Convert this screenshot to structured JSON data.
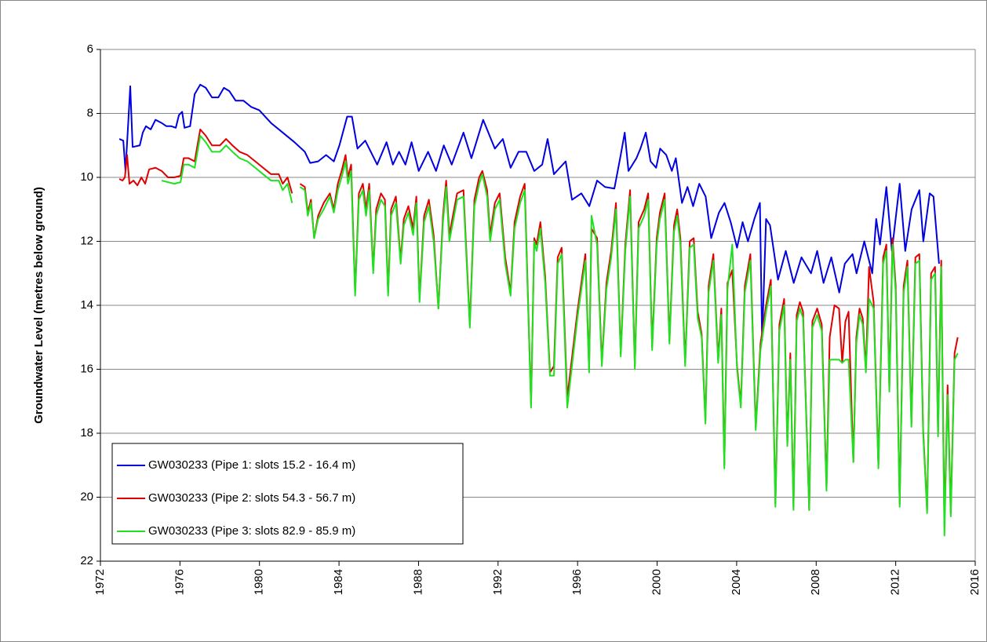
{
  "chart_data": {
    "type": "line",
    "y_label": "Groundwater Level (metres below ground)",
    "xlim": [
      1972,
      2016
    ],
    "xticks": [
      1972,
      1976,
      1980,
      1984,
      1988,
      1992,
      1996,
      2000,
      2004,
      2008,
      2012,
      2016
    ],
    "ylim": [
      6,
      22
    ],
    "yticks": [
      6,
      8,
      10,
      12,
      14,
      16,
      18,
      20,
      22
    ],
    "y_reversed": true,
    "grid": true,
    "legend": "lower-left",
    "series": [
      {
        "name": "GW030233 (Pipe 1: slots 15.2 - 16.4 m)",
        "color": "#0000e0",
        "x": [
          1972.95,
          1973.15,
          1973.26,
          1973.38,
          1973.5,
          1973.62,
          1973.98,
          1974.13,
          1974.29,
          1974.53,
          1974.77,
          1975.08,
          1975.32,
          1975.56,
          1975.79,
          1975.95,
          1976.11,
          1976.23,
          1976.51,
          1976.74,
          1977.02,
          1977.3,
          1977.61,
          1977.93,
          1978.21,
          1978.48,
          1978.8,
          1979.19,
          1979.59,
          1979.99,
          1980.58,
          1981.17,
          1981.76,
          1982.28,
          1982.55,
          1982.95,
          1983.35,
          1983.74,
          1984.02,
          1984.41,
          1984.65,
          1984.93,
          1985.32,
          1985.92,
          1986.39,
          1986.71,
          1987.02,
          1987.34,
          1987.65,
          1988.01,
          1988.48,
          1988.88,
          1989.27,
          1989.67,
          1990.26,
          1990.66,
          1991.25,
          1991.84,
          1992.24,
          1992.63,
          1993.03,
          1993.42,
          1993.82,
          1994.22,
          1994.49,
          1994.81,
          1995.4,
          1995.72,
          1996.19,
          1996.59,
          1996.98,
          1997.38,
          1997.85,
          1998.17,
          1998.37,
          1998.56,
          1998.96,
          1999.16,
          1999.43,
          1999.67,
          1999.95,
          2000.15,
          2000.46,
          2000.74,
          2000.94,
          2001.25,
          2001.53,
          2001.81,
          2002.12,
          2002.44,
          2002.72,
          2003.11,
          2003.39,
          2003.7,
          2004.02,
          2004.3,
          2004.57,
          2004.89,
          2005.17,
          2005.28,
          2005.48,
          2005.68,
          2006.08,
          2006.47,
          2006.87,
          2007.26,
          2007.74,
          2008.05,
          2008.37,
          2008.76,
          2009.16,
          2009.44,
          2009.83,
          2010.03,
          2010.42,
          2010.82,
          2011.02,
          2011.21,
          2011.53,
          2011.81,
          2012.2,
          2012.48,
          2012.8,
          2013.19,
          2013.39,
          2013.71,
          2013.9,
          2014.18
        ],
        "values": [
          8.8,
          8.85,
          9.8,
          8.5,
          7.15,
          9.05,
          9.0,
          8.6,
          8.4,
          8.5,
          8.2,
          8.3,
          8.4,
          8.4,
          8.45,
          8.05,
          7.95,
          8.45,
          8.4,
          7.4,
          7.1,
          7.2,
          7.5,
          7.5,
          7.2,
          7.3,
          7.6,
          7.6,
          7.8,
          7.9,
          8.3,
          8.6,
          8.9,
          9.2,
          9.55,
          9.5,
          9.3,
          9.5,
          9.0,
          8.1,
          8.1,
          9.1,
          8.85,
          9.6,
          8.9,
          9.6,
          9.2,
          9.6,
          8.9,
          9.8,
          9.2,
          9.8,
          9.0,
          9.6,
          8.6,
          9.4,
          8.2,
          9.1,
          8.8,
          9.7,
          9.2,
          9.2,
          9.8,
          9.6,
          8.8,
          9.9,
          9.5,
          10.7,
          10.5,
          10.9,
          10.1,
          10.3,
          10.35,
          9.3,
          8.6,
          9.8,
          9.4,
          9.1,
          8.6,
          9.5,
          9.7,
          9.1,
          9.3,
          9.8,
          9.4,
          10.8,
          10.3,
          10.9,
          10.2,
          10.6,
          11.9,
          11.1,
          10.8,
          11.4,
          12.2,
          11.4,
          12.0,
          11.3,
          10.8,
          15.1,
          11.3,
          11.5,
          13.2,
          12.3,
          13.3,
          12.5,
          13.0,
          12.3,
          13.3,
          12.5,
          13.6,
          12.7,
          12.4,
          13.0,
          12.0,
          13.0,
          11.3,
          12.1,
          10.3,
          12.3,
          10.2,
          12.3,
          11.0,
          10.4,
          12.0,
          10.5,
          10.6,
          12.7
        ]
      },
      {
        "name": "GW030233 (Pipe 2: slots 54.3 - 56.7 m)",
        "color": "#e00000",
        "x": [
          1972.95,
          1973.11,
          1973.23,
          1973.34,
          1973.46,
          1973.66,
          1973.86,
          1974.06,
          1974.25,
          1974.45,
          1974.77,
          1975.08,
          1975.4,
          1975.72,
          1976.03,
          1976.19,
          1976.43,
          1976.74,
          1977.02,
          1977.3,
          1977.61,
          1978.01,
          1978.32,
          1978.64,
          1979.0,
          1979.39,
          1979.79,
          1980.18,
          1980.58,
          1980.97,
          1981.17,
          1981.41,
          1981.64,
          1981.84,
          1982.04,
          1982.28,
          1982.43,
          1982.59,
          1982.75,
          1982.95,
          1983.23,
          1983.54,
          1983.74,
          1983.94,
          1984.13,
          1984.33,
          1984.45,
          1984.61,
          1984.81,
          1985.0,
          1985.2,
          1985.36,
          1985.52,
          1985.72,
          1985.87,
          1986.11,
          1986.31,
          1986.47,
          1986.62,
          1986.86,
          1987.1,
          1987.26,
          1987.49,
          1987.73,
          1987.89,
          1988.05,
          1988.28,
          1988.52,
          1988.76,
          1989.0,
          1989.23,
          1989.39,
          1989.55,
          1989.79,
          1989.94,
          1990.26,
          1990.58,
          1990.81,
          1991.05,
          1991.21,
          1991.45,
          1991.6,
          1991.84,
          1992.08,
          1992.36,
          1992.63,
          1992.83,
          1993.11,
          1993.34,
          1993.66,
          1993.82,
          1993.94,
          1994.13,
          1994.37,
          1994.61,
          1994.81,
          1995.0,
          1995.2,
          1995.48,
          1995.99,
          1996.39,
          1996.58,
          1996.7,
          1996.98,
          1997.22,
          1997.45,
          1997.69,
          1997.93,
          1998.17,
          1998.4,
          1998.64,
          1998.88,
          1999.07,
          1999.35,
          1999.55,
          1999.75,
          1999.98,
          2000.14,
          2000.38,
          2000.62,
          2000.85,
          2001.01,
          2001.17,
          2001.41,
          2001.64,
          2001.84,
          2002.04,
          2002.24,
          2002.43,
          2002.59,
          2002.83,
          2003.07,
          2003.23,
          2003.38,
          2003.54,
          2003.78,
          2004.02,
          2004.21,
          2004.41,
          2004.69,
          2004.96,
          2005.2,
          2005.48,
          2005.72,
          2005.95,
          2006.15,
          2006.39,
          2006.55,
          2006.7,
          2006.86,
          2007.02,
          2007.18,
          2007.34,
          2007.65,
          2007.81,
          2008.05,
          2008.28,
          2008.52,
          2008.68,
          2008.92,
          2009.15,
          2009.31,
          2009.47,
          2009.63,
          2009.87,
          2010.02,
          2010.18,
          2010.34,
          2010.5,
          2010.66,
          2010.89,
          2011.13,
          2011.37,
          2011.53,
          2011.68,
          2011.84,
          2012.0,
          2012.2,
          2012.4,
          2012.59,
          2012.79,
          2012.99,
          2013.19,
          2013.38,
          2013.58,
          2013.78,
          2013.98,
          2014.13,
          2014.29,
          2014.45,
          2014.61,
          2014.77,
          2014.96,
          2015.12
        ],
        "values": [
          10.05,
          10.1,
          10.0,
          9.3,
          10.2,
          10.1,
          10.25,
          10.0,
          10.2,
          9.75,
          9.7,
          9.8,
          10.0,
          10.0,
          9.95,
          9.4,
          9.4,
          9.5,
          8.5,
          8.7,
          9.0,
          9.0,
          8.8,
          9.0,
          9.2,
          9.3,
          9.5,
          9.7,
          9.9,
          9.9,
          10.2,
          10.0,
          10.5,
          null,
          10.2,
          10.3,
          11.1,
          10.7,
          11.9,
          11.2,
          10.8,
          10.5,
          11.0,
          10.2,
          9.8,
          9.3,
          10.0,
          9.6,
          13.6,
          10.5,
          10.2,
          11.0,
          10.2,
          12.9,
          11.0,
          10.5,
          10.7,
          13.6,
          11.0,
          10.6,
          12.6,
          11.3,
          10.9,
          11.6,
          10.6,
          13.8,
          11.2,
          10.7,
          11.8,
          14.1,
          11.2,
          10.1,
          11.8,
          11.0,
          10.5,
          10.4,
          14.6,
          10.7,
          10.0,
          9.8,
          10.4,
          11.8,
          10.8,
          10.5,
          12.5,
          13.6,
          11.4,
          10.6,
          10.2,
          17.1,
          11.9,
          12.1,
          11.4,
          13.1,
          16.1,
          15.9,
          12.5,
          12.2,
          16.9,
          14.2,
          12.4,
          16.0,
          11.6,
          11.9,
          15.8,
          13.3,
          12.3,
          10.8,
          15.5,
          12.1,
          10.4,
          15.9,
          11.4,
          11.0,
          10.5,
          15.3,
          11.9,
          11.1,
          10.5,
          15.1,
          11.5,
          11.0,
          11.9,
          15.8,
          12.0,
          11.9,
          14.2,
          14.9,
          17.6,
          13.4,
          12.4,
          15.7,
          14.1,
          19.0,
          13.3,
          12.9,
          15.9,
          17.1,
          13.4,
          12.4,
          17.8,
          15.2,
          14.0,
          13.2,
          20.2,
          14.6,
          13.8,
          18.3,
          15.5,
          20.3,
          14.3,
          13.9,
          14.2,
          20.4,
          14.5,
          14.1,
          14.6,
          19.7,
          15.0,
          14.0,
          14.1,
          15.8,
          14.5,
          14.2,
          18.9,
          15.0,
          14.1,
          14.4,
          16.0,
          12.8,
          13.9,
          19.0,
          12.5,
          12.1,
          16.6,
          11.9,
          13.4,
          20.2,
          13.4,
          12.6,
          17.7,
          12.5,
          12.4,
          17.9,
          20.4,
          13.0,
          12.8,
          18.0,
          12.6,
          20.9,
          16.5,
          20.5,
          15.5,
          15.0
        ]
      },
      {
        "name": "GW030233 (Pipe 3: slots 82.9 - 85.9 m)",
        "color": "#20e020",
        "x": [
          1972.95,
          1973.11,
          1973.23,
          1973.34,
          1973.46,
          1973.66,
          1973.86,
          1974.06,
          1974.25,
          1974.45,
          1974.77,
          1975.08,
          1975.4,
          1975.72,
          1976.03,
          1976.19,
          1976.43,
          1976.74,
          1977.02,
          1977.3,
          1977.61,
          1978.01,
          1978.32,
          1978.64,
          1979.0,
          1979.39,
          1979.79,
          1980.18,
          1980.58,
          1980.97,
          1981.17,
          1981.41,
          1981.64,
          1981.84,
          1982.04,
          1982.28,
          1982.43,
          1982.59,
          1982.75,
          1982.95,
          1983.23,
          1983.54,
          1983.74,
          1983.94,
          1984.13,
          1984.33,
          1984.45,
          1984.61,
          1984.81,
          1985.0,
          1985.2,
          1985.36,
          1985.52,
          1985.72,
          1985.87,
          1986.11,
          1986.31,
          1986.47,
          1986.62,
          1986.86,
          1987.1,
          1987.26,
          1987.49,
          1987.73,
          1987.89,
          1988.05,
          1988.28,
          1988.52,
          1988.76,
          1989.0,
          1989.23,
          1989.39,
          1989.55,
          1989.79,
          1989.94,
          1990.26,
          1990.58,
          1990.81,
          1991.05,
          1991.21,
          1991.45,
          1991.6,
          1991.84,
          1992.08,
          1992.36,
          1992.63,
          1992.83,
          1993.11,
          1993.34,
          1993.66,
          1993.82,
          1993.94,
          1994.13,
          1994.37,
          1994.61,
          1994.81,
          1995.0,
          1995.2,
          1995.48,
          1995.99,
          1996.39,
          1996.58,
          1996.7,
          1996.98,
          1997.22,
          1997.45,
          1997.69,
          1997.93,
          1998.17,
          1998.4,
          1998.64,
          1998.88,
          1999.07,
          1999.35,
          1999.55,
          1999.75,
          1999.98,
          2000.14,
          2000.38,
          2000.62,
          2000.85,
          2001.01,
          2001.17,
          2001.41,
          2001.64,
          2001.84,
          2002.04,
          2002.24,
          2002.43,
          2002.59,
          2002.83,
          2003.07,
          2003.23,
          2003.38,
          2003.54,
          2003.78,
          2004.02,
          2004.21,
          2004.41,
          2004.69,
          2004.96,
          2005.2,
          2005.48,
          2005.72,
          2005.95,
          2006.15,
          2006.39,
          2006.55,
          2006.7,
          2006.86,
          2007.02,
          2007.18,
          2007.34,
          2007.65,
          2007.81,
          2008.05,
          2008.28,
          2008.52,
          2008.68,
          2008.92,
          2009.15,
          2009.31,
          2009.47,
          2009.63,
          2009.87,
          2010.02,
          2010.18,
          2010.34,
          2010.5,
          2010.66,
          2010.89,
          2011.13,
          2011.37,
          2011.53,
          2011.68,
          2011.84,
          2012.0,
          2012.2,
          2012.4,
          2012.59,
          2012.79,
          2012.99,
          2013.19,
          2013.38,
          2013.58,
          2013.78,
          2013.98,
          2014.13,
          2014.29,
          2014.45,
          2014.61,
          2014.77,
          2014.96,
          2015.12
        ],
        "values": [
          null,
          null,
          null,
          null,
          null,
          null,
          null,
          null,
          null,
          null,
          null,
          10.1,
          10.15,
          10.2,
          10.15,
          9.6,
          9.6,
          9.7,
          8.7,
          8.9,
          9.2,
          9.2,
          9.0,
          9.2,
          9.4,
          9.5,
          9.7,
          9.9,
          10.1,
          10.1,
          10.4,
          10.2,
          10.8,
          null,
          10.3,
          10.4,
          11.2,
          10.8,
          11.9,
          11.3,
          11.0,
          10.6,
          11.1,
          10.4,
          10.0,
          9.5,
          10.2,
          9.8,
          13.7,
          10.7,
          10.4,
          11.2,
          10.4,
          13.0,
          11.2,
          10.7,
          10.9,
          13.7,
          11.2,
          10.8,
          12.7,
          11.5,
          11.1,
          11.8,
          10.8,
          13.9,
          11.4,
          10.9,
          12.0,
          14.1,
          11.4,
          10.3,
          12.0,
          11.2,
          10.7,
          10.6,
          14.7,
          10.9,
          10.2,
          9.9,
          10.6,
          12.0,
          11.0,
          10.7,
          12.7,
          13.7,
          11.6,
          10.8,
          10.4,
          17.2,
          12.0,
          12.3,
          11.6,
          13.3,
          16.2,
          16.2,
          12.7,
          12.4,
          17.2,
          14.4,
          12.6,
          16.1,
          11.2,
          12.1,
          15.9,
          13.5,
          12.5,
          11.0,
          15.6,
          12.3,
          10.6,
          16.0,
          11.6,
          11.2,
          10.7,
          15.4,
          12.1,
          11.3,
          10.7,
          15.2,
          11.7,
          11.2,
          12.1,
          15.9,
          12.2,
          12.1,
          14.4,
          15.0,
          17.7,
          13.6,
          12.6,
          15.8,
          14.3,
          19.1,
          13.5,
          12.1,
          16.0,
          17.2,
          13.6,
          12.6,
          17.9,
          15.4,
          14.2,
          13.4,
          20.3,
          14.8,
          14.0,
          18.4,
          15.7,
          20.4,
          14.5,
          14.1,
          14.4,
          20.4,
          14.7,
          14.3,
          14.8,
          19.8,
          15.7,
          15.7,
          15.7,
          15.8,
          15.7,
          15.7,
          18.9,
          15.2,
          14.3,
          14.6,
          16.1,
          13.8,
          14.1,
          19.1,
          12.7,
          12.3,
          16.7,
          12.1,
          13.6,
          20.3,
          13.6,
          12.8,
          17.8,
          12.7,
          12.6,
          18.0,
          20.5,
          13.2,
          13.0,
          18.1,
          12.8,
          21.2,
          16.8,
          20.6,
          15.7,
          15.5
        ]
      }
    ]
  }
}
